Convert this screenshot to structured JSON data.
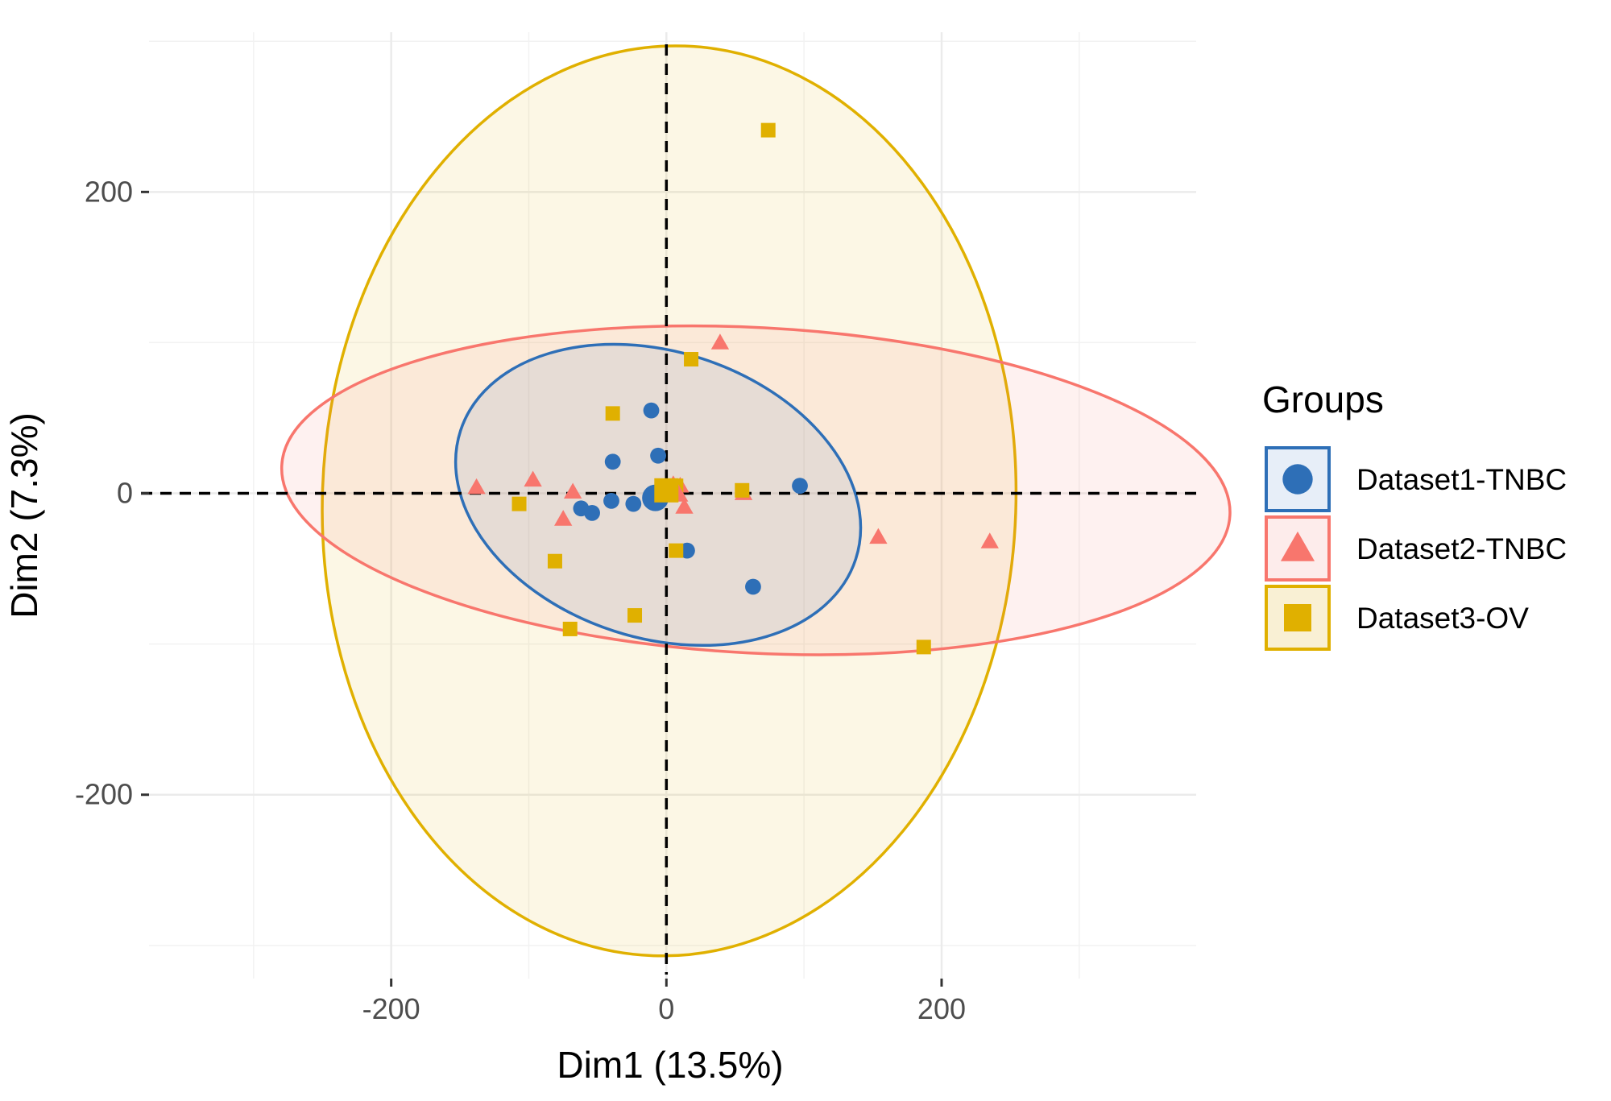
{
  "chart_data": {
    "type": "scatter",
    "xlabel": "Dim1 (13.5%)",
    "ylabel": "Dim2 (7.3%)",
    "xlim": [
      -376,
      385
    ],
    "ylim": [
      -322,
      306
    ],
    "x_ticks": [
      -200,
      0,
      200
    ],
    "y_ticks": [
      -200,
      0,
      200
    ],
    "x_tick_labels": [
      "-200",
      "0",
      "200"
    ],
    "y_tick_labels": [
      "-200",
      "0",
      "200"
    ],
    "grid": true,
    "reference_lines": {
      "x": 0,
      "y": 0,
      "style": "dashed"
    },
    "legend": {
      "title": "Groups",
      "position": "right"
    },
    "series": [
      {
        "name": "Dataset1-TNBC",
        "marker": "circle",
        "color": "#2e6fb7",
        "fill": "#e7eef8",
        "centroid": {
          "x": -8,
          "y": -3
        },
        "points": [
          {
            "x": -11,
            "y": 55
          },
          {
            "x": -6,
            "y": 25
          },
          {
            "x": -39,
            "y": 21
          },
          {
            "x": -40,
            "y": -5
          },
          {
            "x": -24,
            "y": -7
          },
          {
            "x": -62,
            "y": -10
          },
          {
            "x": -54,
            "y": -13
          },
          {
            "x": 97,
            "y": 5
          },
          {
            "x": 15,
            "y": -38
          },
          {
            "x": 63,
            "y": -62
          },
          {
            "x": -2,
            "y": 0
          },
          {
            "x": 3,
            "y": 2
          }
        ],
        "ellipse": {
          "cx": -6,
          "cy": -1,
          "rx": 151,
          "ry": 95,
          "angle_deg": -18
        }
      },
      {
        "name": "Dataset2-TNBC",
        "marker": "triangle",
        "color": "#f8766d",
        "fill": "#fdeceb",
        "centroid": {
          "x": 5,
          "y": 2
        },
        "points": [
          {
            "x": -138,
            "y": 4
          },
          {
            "x": -97,
            "y": 9
          },
          {
            "x": -68,
            "y": 1
          },
          {
            "x": -75,
            "y": -17
          },
          {
            "x": 39,
            "y": 100
          },
          {
            "x": 13,
            "y": -9
          },
          {
            "x": 10,
            "y": 5
          },
          {
            "x": 56,
            "y": 0
          },
          {
            "x": 154,
            "y": -29
          },
          {
            "x": 235,
            "y": -32
          }
        ],
        "ellipse": {
          "cx": 65,
          "cy": 2,
          "rx": 345,
          "ry": 108,
          "angle_deg": -3
        }
      },
      {
        "name": "Dataset3-OV",
        "marker": "square",
        "color": "#e0b000",
        "fill": "#f9f0d4",
        "centroid": {
          "x": 0,
          "y": 2
        },
        "points": [
          {
            "x": 74,
            "y": 241
          },
          {
            "x": 18,
            "y": 89
          },
          {
            "x": -39,
            "y": 53
          },
          {
            "x": -107,
            "y": -7
          },
          {
            "x": -81,
            "y": -45
          },
          {
            "x": -70,
            "y": -90
          },
          {
            "x": -23,
            "y": -81
          },
          {
            "x": 7,
            "y": -38
          },
          {
            "x": 55,
            "y": 2
          },
          {
            "x": 7,
            "y": 5
          },
          {
            "x": -3,
            "y": 5
          },
          {
            "x": 187,
            "y": -102
          }
        ],
        "ellipse": {
          "cx": 2,
          "cy": -5,
          "rx": 252,
          "ry": 302,
          "angle_deg": -2
        }
      }
    ]
  }
}
